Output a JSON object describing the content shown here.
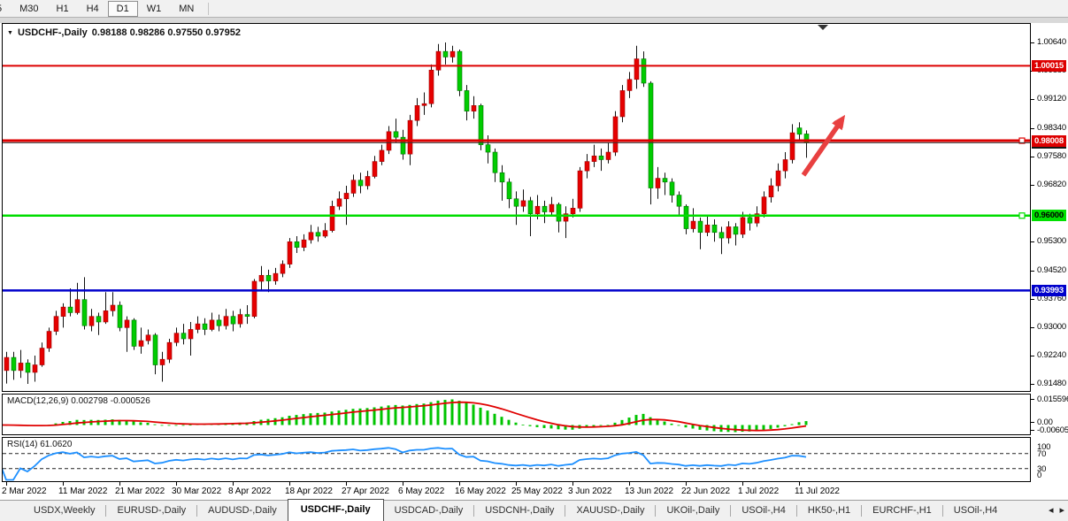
{
  "toolbar": {
    "periods": [
      "5",
      "M30",
      "H1",
      "H4",
      "D1",
      "W1",
      "MN"
    ],
    "active": "D1"
  },
  "title": {
    "marker": "▼",
    "symbol": "USDCHF-,Daily",
    "ohlc": "0.98188 0.98286 0.97550 0.97952"
  },
  "price_axis": {
    "scale_labels": [
      "1.00640",
      "0.99880",
      "0.99120",
      "0.98340",
      "0.97580",
      "0.96820",
      "0.95300",
      "0.94520",
      "0.93760",
      "0.93000",
      "0.92240",
      "0.91480"
    ],
    "badges": [
      {
        "text": "0.97952",
        "bg": "#151515",
        "fg": "#ffffff"
      },
      {
        "text": "1.00015",
        "bg": "#dd0000",
        "fg": "#ffffff"
      },
      {
        "text": "0.98008",
        "bg": "#dd0000",
        "fg": "#ffffff"
      },
      {
        "text": "0.96000",
        "bg": "#00e000",
        "fg": "#000000"
      },
      {
        "text": "0.93993",
        "bg": "#0000cc",
        "fg": "#ffffff"
      }
    ]
  },
  "levels": [
    {
      "price": 1.00015,
      "color": "#dd0000",
      "width": 2,
      "marker": false
    },
    {
      "price": 0.98008,
      "color": "#dd0000",
      "width": 3,
      "marker": true
    },
    {
      "price": 0.97952,
      "color": "#333333",
      "width": 1,
      "marker": false
    },
    {
      "price": 0.96,
      "color": "#00dd00",
      "width": 2.5,
      "marker": true
    },
    {
      "price": 0.93993,
      "color": "#0000cc",
      "width": 2.5,
      "marker": false
    }
  ],
  "macd": {
    "name": "MACD(12,26,9)",
    "values": "0.002798 -0.000526",
    "axis_max": "0.015596",
    "axis_zero": "0.00",
    "axis_min": "-0.006059",
    "hist_color": "#00c400",
    "signal_color": "#e00000",
    "fast": 12,
    "slow": 26,
    "signal": 9
  },
  "rsi": {
    "name": "RSI(14)",
    "value": "61.0620",
    "period": 14,
    "axis": [
      "100",
      "70",
      "30",
      "0"
    ],
    "levels": [
      70,
      30
    ],
    "line_color": "#1e90ff"
  },
  "arrow": {
    "color": "#e84040"
  },
  "tabs": {
    "items": [
      "USDX,Weekly",
      "EURUSD-,Daily",
      "AUDUSD-,Daily",
      "USDCHF-,Daily",
      "USDCAD-,Daily",
      "USDCNH-,Daily",
      "XAUUSD-,Daily",
      "UKOil-,Daily",
      "USOil-,H4",
      "HK50-,H1",
      "EURCHF-,H1",
      "USOil-,H4"
    ],
    "active_index": 3,
    "scroll_left": "◂",
    "scroll_right": "▸"
  },
  "chart_data": {
    "type": "candlestick",
    "symbol": "USDCHF",
    "timeframe": "Daily",
    "up_color": "#e60000",
    "down_color": "#00cc00",
    "ylim": [
      0.9128,
      1.0116
    ],
    "x_labels": [
      "2 Mar 2022",
      "11 Mar 2022",
      "21 Mar 2022",
      "30 Mar 2022",
      "8 Apr 2022",
      "18 Apr 2022",
      "27 Apr 2022",
      "6 May 2022",
      "16 May 2022",
      "25 May 2022",
      "3 Jun 2022",
      "13 Jun 2022",
      "22 Jun 2022",
      "1 Jul 2022",
      "11 Jul 2022"
    ],
    "label_first_bar": 1,
    "label_every": 8,
    "ohlc": [
      [
        0.9205,
        0.924,
        0.9175,
        0.923
      ],
      [
        0.9185,
        0.9235,
        0.915,
        0.922
      ],
      [
        0.922,
        0.9235,
        0.916,
        0.9185
      ],
      [
        0.9185,
        0.924,
        0.9165,
        0.9205
      ],
      [
        0.9205,
        0.9215,
        0.9149,
        0.918
      ],
      [
        0.918,
        0.9225,
        0.9155,
        0.92
      ],
      [
        0.92,
        0.926,
        0.9195,
        0.9245
      ],
      [
        0.9245,
        0.93,
        0.9235,
        0.929
      ],
      [
        0.929,
        0.9345,
        0.928,
        0.933
      ],
      [
        0.933,
        0.9365,
        0.93,
        0.9355
      ],
      [
        0.9355,
        0.9405,
        0.933,
        0.934
      ],
      [
        0.934,
        0.942,
        0.9335,
        0.9375
      ],
      [
        0.9375,
        0.9435,
        0.9295,
        0.9305
      ],
      [
        0.9305,
        0.935,
        0.929,
        0.933
      ],
      [
        0.933,
        0.934,
        0.928,
        0.9315
      ],
      [
        0.9315,
        0.9395,
        0.931,
        0.9345
      ],
      [
        0.9345,
        0.9395,
        0.933,
        0.936
      ],
      [
        0.936,
        0.937,
        0.929,
        0.93
      ],
      [
        0.93,
        0.933,
        0.9235,
        0.932
      ],
      [
        0.932,
        0.9325,
        0.924,
        0.925
      ],
      [
        0.925,
        0.93,
        0.923,
        0.9265
      ],
      [
        0.9265,
        0.9295,
        0.9255,
        0.928
      ],
      [
        0.928,
        0.9285,
        0.9175,
        0.92
      ],
      [
        0.92,
        0.9235,
        0.9155,
        0.9215
      ],
      [
        0.9215,
        0.927,
        0.9205,
        0.926
      ],
      [
        0.926,
        0.93,
        0.925,
        0.9285
      ],
      [
        0.9285,
        0.931,
        0.9255,
        0.927
      ],
      [
        0.927,
        0.9315,
        0.9225,
        0.9295
      ],
      [
        0.9295,
        0.933,
        0.9285,
        0.931
      ],
      [
        0.931,
        0.9325,
        0.928,
        0.9295
      ],
      [
        0.9295,
        0.934,
        0.929,
        0.932
      ],
      [
        0.932,
        0.9335,
        0.929,
        0.9305
      ],
      [
        0.9305,
        0.935,
        0.9295,
        0.933
      ],
      [
        0.933,
        0.9345,
        0.929,
        0.931
      ],
      [
        0.931,
        0.935,
        0.93,
        0.9335
      ],
      [
        0.9335,
        0.936,
        0.931,
        0.933
      ],
      [
        0.933,
        0.943,
        0.9325,
        0.9424
      ],
      [
        0.9424,
        0.9465,
        0.94,
        0.944
      ],
      [
        0.944,
        0.9455,
        0.9395,
        0.9425
      ],
      [
        0.9425,
        0.946,
        0.9415,
        0.9445
      ],
      [
        0.9445,
        0.948,
        0.9435,
        0.947
      ],
      [
        0.947,
        0.954,
        0.946,
        0.953
      ],
      [
        0.953,
        0.9545,
        0.95,
        0.9515
      ],
      [
        0.9515,
        0.955,
        0.9505,
        0.9535
      ],
      [
        0.9535,
        0.9575,
        0.9525,
        0.9555
      ],
      [
        0.9555,
        0.957,
        0.953,
        0.9545
      ],
      [
        0.9545,
        0.958,
        0.954,
        0.956
      ],
      [
        0.956,
        0.964,
        0.9555,
        0.9625
      ],
      [
        0.9625,
        0.9665,
        0.9615,
        0.9645
      ],
      [
        0.9645,
        0.968,
        0.9575,
        0.966
      ],
      [
        0.966,
        0.971,
        0.965,
        0.9695
      ],
      [
        0.9695,
        0.9715,
        0.966,
        0.968
      ],
      [
        0.968,
        0.972,
        0.967,
        0.9705
      ],
      [
        0.9705,
        0.976,
        0.97,
        0.9745
      ],
      [
        0.9745,
        0.979,
        0.9735,
        0.9775
      ],
      [
        0.9775,
        0.984,
        0.9765,
        0.9825
      ],
      [
        0.9825,
        0.986,
        0.9795,
        0.981
      ],
      [
        0.981,
        0.983,
        0.975,
        0.9765
      ],
      [
        0.9765,
        0.987,
        0.9735,
        0.9855
      ],
      [
        0.9855,
        0.9915,
        0.984,
        0.9895
      ],
      [
        0.9895,
        0.993,
        0.987,
        0.99
      ],
      [
        0.99,
        1.0005,
        0.989,
        0.999
      ],
      [
        0.999,
        1.006,
        0.9975,
        1.004
      ],
      [
        1.004,
        1.0064,
        1.0005,
        1.0025
      ],
      [
        1.0025,
        1.0055,
        1.001,
        1.004
      ],
      [
        1.004,
        1.0045,
        0.992,
        0.9935
      ],
      [
        0.9935,
        0.995,
        0.9855,
        0.988
      ],
      [
        0.988,
        0.992,
        0.986,
        0.9895
      ],
      [
        0.9895,
        0.99,
        0.9775,
        0.979
      ],
      [
        0.979,
        0.9815,
        0.974,
        0.977
      ],
      [
        0.977,
        0.978,
        0.969,
        0.9715
      ],
      [
        0.9715,
        0.9735,
        0.964,
        0.969
      ],
      [
        0.969,
        0.97,
        0.962,
        0.9645
      ],
      [
        0.9645,
        0.9665,
        0.9575,
        0.9625
      ],
      [
        0.9625,
        0.967,
        0.961,
        0.964
      ],
      [
        0.964,
        0.965,
        0.9545,
        0.9605
      ],
      [
        0.9605,
        0.9655,
        0.959,
        0.9625
      ],
      [
        0.9625,
        0.964,
        0.958,
        0.961
      ],
      [
        0.961,
        0.965,
        0.96,
        0.963
      ],
      [
        0.963,
        0.9635,
        0.9555,
        0.9585
      ],
      [
        0.9585,
        0.9625,
        0.954,
        0.9605
      ],
      [
        0.9605,
        0.9645,
        0.9595,
        0.962
      ],
      [
        0.962,
        0.973,
        0.961,
        0.972
      ],
      [
        0.972,
        0.9765,
        0.97,
        0.9745
      ],
      [
        0.9745,
        0.979,
        0.973,
        0.976
      ],
      [
        0.976,
        0.978,
        0.972,
        0.975
      ],
      [
        0.975,
        0.9795,
        0.974,
        0.977
      ],
      [
        0.977,
        0.988,
        0.976,
        0.9865
      ],
      [
        0.9865,
        0.995,
        0.985,
        0.9935
      ],
      [
        0.9935,
        0.9985,
        0.9915,
        0.9965
      ],
      [
        0.9965,
        1.0055,
        0.994,
        1.002
      ],
      [
        1.002,
        1.004,
        0.9945,
        0.9955
      ],
      [
        0.9955,
        0.996,
        0.963,
        0.9674
      ],
      [
        0.9674,
        0.973,
        0.9645,
        0.97
      ],
      [
        0.97,
        0.9715,
        0.9655,
        0.969
      ],
      [
        0.969,
        0.97,
        0.9635,
        0.9655
      ],
      [
        0.9655,
        0.9665,
        0.96,
        0.9625
      ],
      [
        0.9625,
        0.963,
        0.955,
        0.9565
      ],
      [
        0.9565,
        0.962,
        0.9555,
        0.9585
      ],
      [
        0.9585,
        0.9595,
        0.951,
        0.9555
      ],
      [
        0.9555,
        0.96,
        0.9545,
        0.9575
      ],
      [
        0.9575,
        0.959,
        0.953,
        0.9555
      ],
      [
        0.9555,
        0.957,
        0.9497,
        0.954
      ],
      [
        0.954,
        0.9585,
        0.9525,
        0.957
      ],
      [
        0.957,
        0.958,
        0.952,
        0.955
      ],
      [
        0.955,
        0.961,
        0.954,
        0.9595
      ],
      [
        0.9595,
        0.9605,
        0.956,
        0.958
      ],
      [
        0.958,
        0.9625,
        0.957,
        0.9605
      ],
      [
        0.9605,
        0.9665,
        0.9595,
        0.965
      ],
      [
        0.965,
        0.97,
        0.9635,
        0.968
      ],
      [
        0.968,
        0.974,
        0.9665,
        0.972
      ],
      [
        0.972,
        0.977,
        0.97,
        0.975
      ],
      [
        0.975,
        0.9845,
        0.974,
        0.9822
      ],
      [
        0.9835,
        0.985,
        0.98,
        0.9818
      ],
      [
        0.98188,
        0.98286,
        0.9755,
        0.97952
      ]
    ]
  }
}
